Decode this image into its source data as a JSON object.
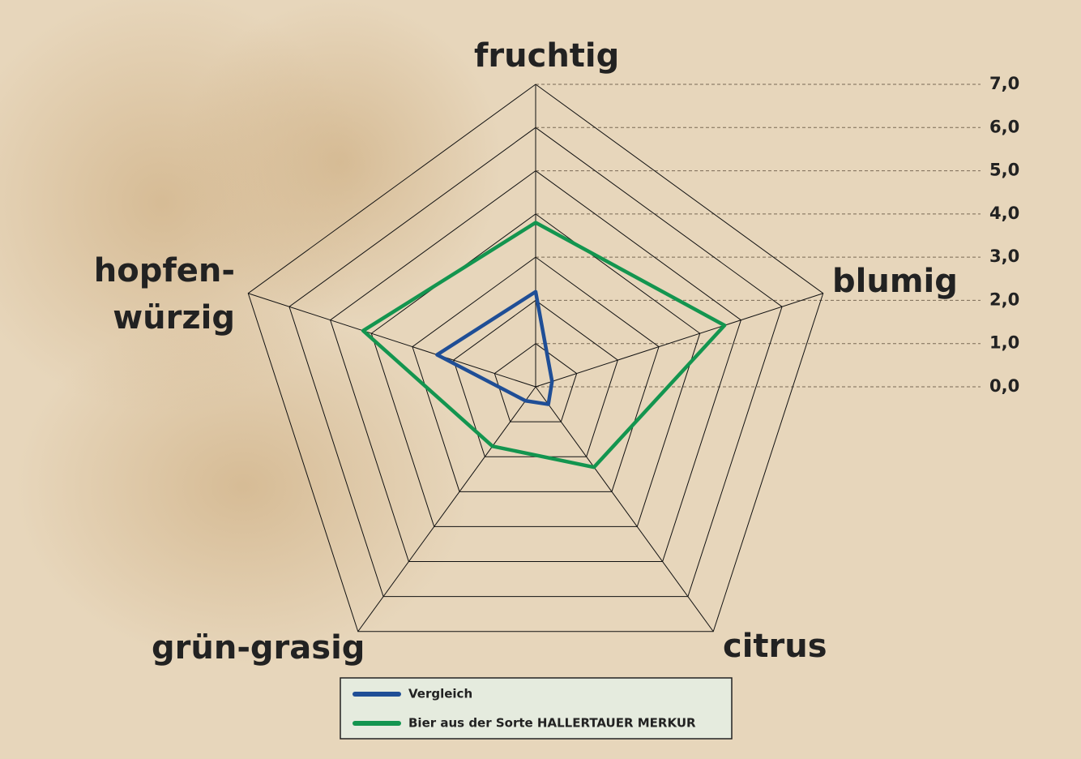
{
  "chart_data": {
    "type": "radar",
    "categories": [
      "fruchtig",
      "blumig",
      "citrus",
      "grün-grasig",
      "hopfen-\nwürzig"
    ],
    "rlim": [
      0,
      7
    ],
    "rticks": [
      {
        "value": 0,
        "label": "0,0"
      },
      {
        "value": 1,
        "label": "1,0"
      },
      {
        "value": 2,
        "label": "2,0"
      },
      {
        "value": 3,
        "label": "3,0"
      },
      {
        "value": 4,
        "label": "4,0"
      },
      {
        "value": 5,
        "label": "5,0"
      },
      {
        "value": 6,
        "label": "6,0"
      },
      {
        "value": 7,
        "label": "7,0"
      }
    ],
    "series": [
      {
        "name": "Vergleich",
        "color": "#1f4e96",
        "values": [
          2.2,
          0.4,
          0.5,
          0.4,
          2.4
        ]
      },
      {
        "name": "Bier aus der Sorte HALLERTAUER MERKUR",
        "color": "#13954f",
        "values": [
          3.8,
          4.6,
          2.3,
          1.7,
          4.2
        ]
      }
    ]
  }
}
